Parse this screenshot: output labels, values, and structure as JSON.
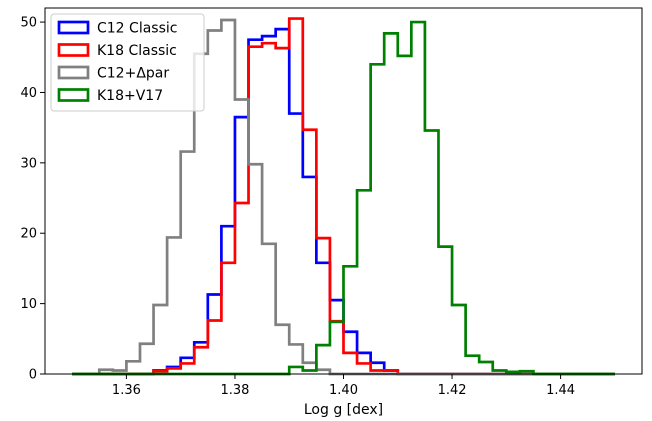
{
  "chart_data": {
    "type": "histogram",
    "title": "",
    "xlabel": "Log g [dex]",
    "ylabel": "",
    "xlim": [
      1.345,
      1.455
    ],
    "ylim": [
      0,
      52
    ],
    "xticks": [
      1.36,
      1.38,
      1.4,
      1.42,
      1.44
    ],
    "xtick_labels": [
      "1.36",
      "1.38",
      "1.40",
      "1.42",
      "1.44"
    ],
    "yticks": [
      0,
      10,
      20,
      30,
      40,
      50
    ],
    "ytick_labels": [
      "0",
      "10",
      "20",
      "30",
      "40",
      "50"
    ],
    "grid": false,
    "legend_position": "top-left",
    "bin_edges": [
      1.35,
      1.3525,
      1.355,
      1.3575,
      1.36,
      1.3625,
      1.365,
      1.3675,
      1.37,
      1.3725,
      1.375,
      1.3775,
      1.38,
      1.3825,
      1.385,
      1.3875,
      1.39,
      1.3925,
      1.395,
      1.3975,
      1.4,
      1.4025,
      1.405,
      1.4075,
      1.41,
      1.4125,
      1.415,
      1.4175,
      1.42,
      1.4225,
      1.425,
      1.4275,
      1.43,
      1.4325,
      1.435,
      1.4375,
      1.44,
      1.4425,
      1.445,
      1.4475,
      1.45
    ],
    "series": [
      {
        "name": "C12 Classic",
        "color": "#0000ff",
        "values": [
          0,
          0,
          0,
          0,
          0,
          0,
          0.5,
          1.0,
          2.3,
          4.5,
          11.3,
          21.0,
          36.5,
          47.5,
          48.0,
          49.0,
          37.0,
          28.0,
          15.8,
          10.5,
          6.0,
          3.0,
          1.6,
          0.5,
          0,
          0,
          0,
          0,
          0,
          0,
          0,
          0,
          0,
          0,
          0,
          0,
          0,
          0,
          0,
          0
        ]
      },
      {
        "name": "K18 Classic",
        "color": "#ff0000",
        "values": [
          0,
          0,
          0,
          0,
          0,
          0,
          0.4,
          0.8,
          1.5,
          3.8,
          7.6,
          15.8,
          24.3,
          46.5,
          47.0,
          46.3,
          50.5,
          34.7,
          19.3,
          7.5,
          3.0,
          1.5,
          0.5,
          0.5,
          0,
          0,
          0,
          0,
          0,
          0,
          0,
          0,
          0,
          0,
          0,
          0,
          0,
          0,
          0,
          0
        ]
      },
      {
        "name": "C12+Δpar",
        "color": "#808080",
        "values": [
          0,
          0,
          0.6,
          0.5,
          1.8,
          4.3,
          9.8,
          19.4,
          31.6,
          45.5,
          48.8,
          50.3,
          39.0,
          29.8,
          18.5,
          7.0,
          4.2,
          1.6,
          0.6,
          0,
          0,
          0,
          0,
          0,
          0,
          0,
          0,
          0,
          0,
          0,
          0,
          0,
          0,
          0,
          0,
          0,
          0,
          0,
          0,
          0
        ]
      },
      {
        "name": "K18+V17",
        "color": "#008000",
        "values": [
          0,
          0,
          0,
          0,
          0,
          0,
          0,
          0,
          0,
          0,
          0,
          0,
          0,
          0,
          0,
          0,
          1.0,
          0.5,
          4.1,
          7.4,
          15.3,
          26.1,
          44.0,
          48.4,
          45.2,
          50.0,
          34.6,
          18.1,
          9.8,
          2.6,
          1.7,
          0.5,
          0.3,
          0.4,
          0,
          0,
          0,
          0,
          0,
          0
        ]
      }
    ]
  }
}
